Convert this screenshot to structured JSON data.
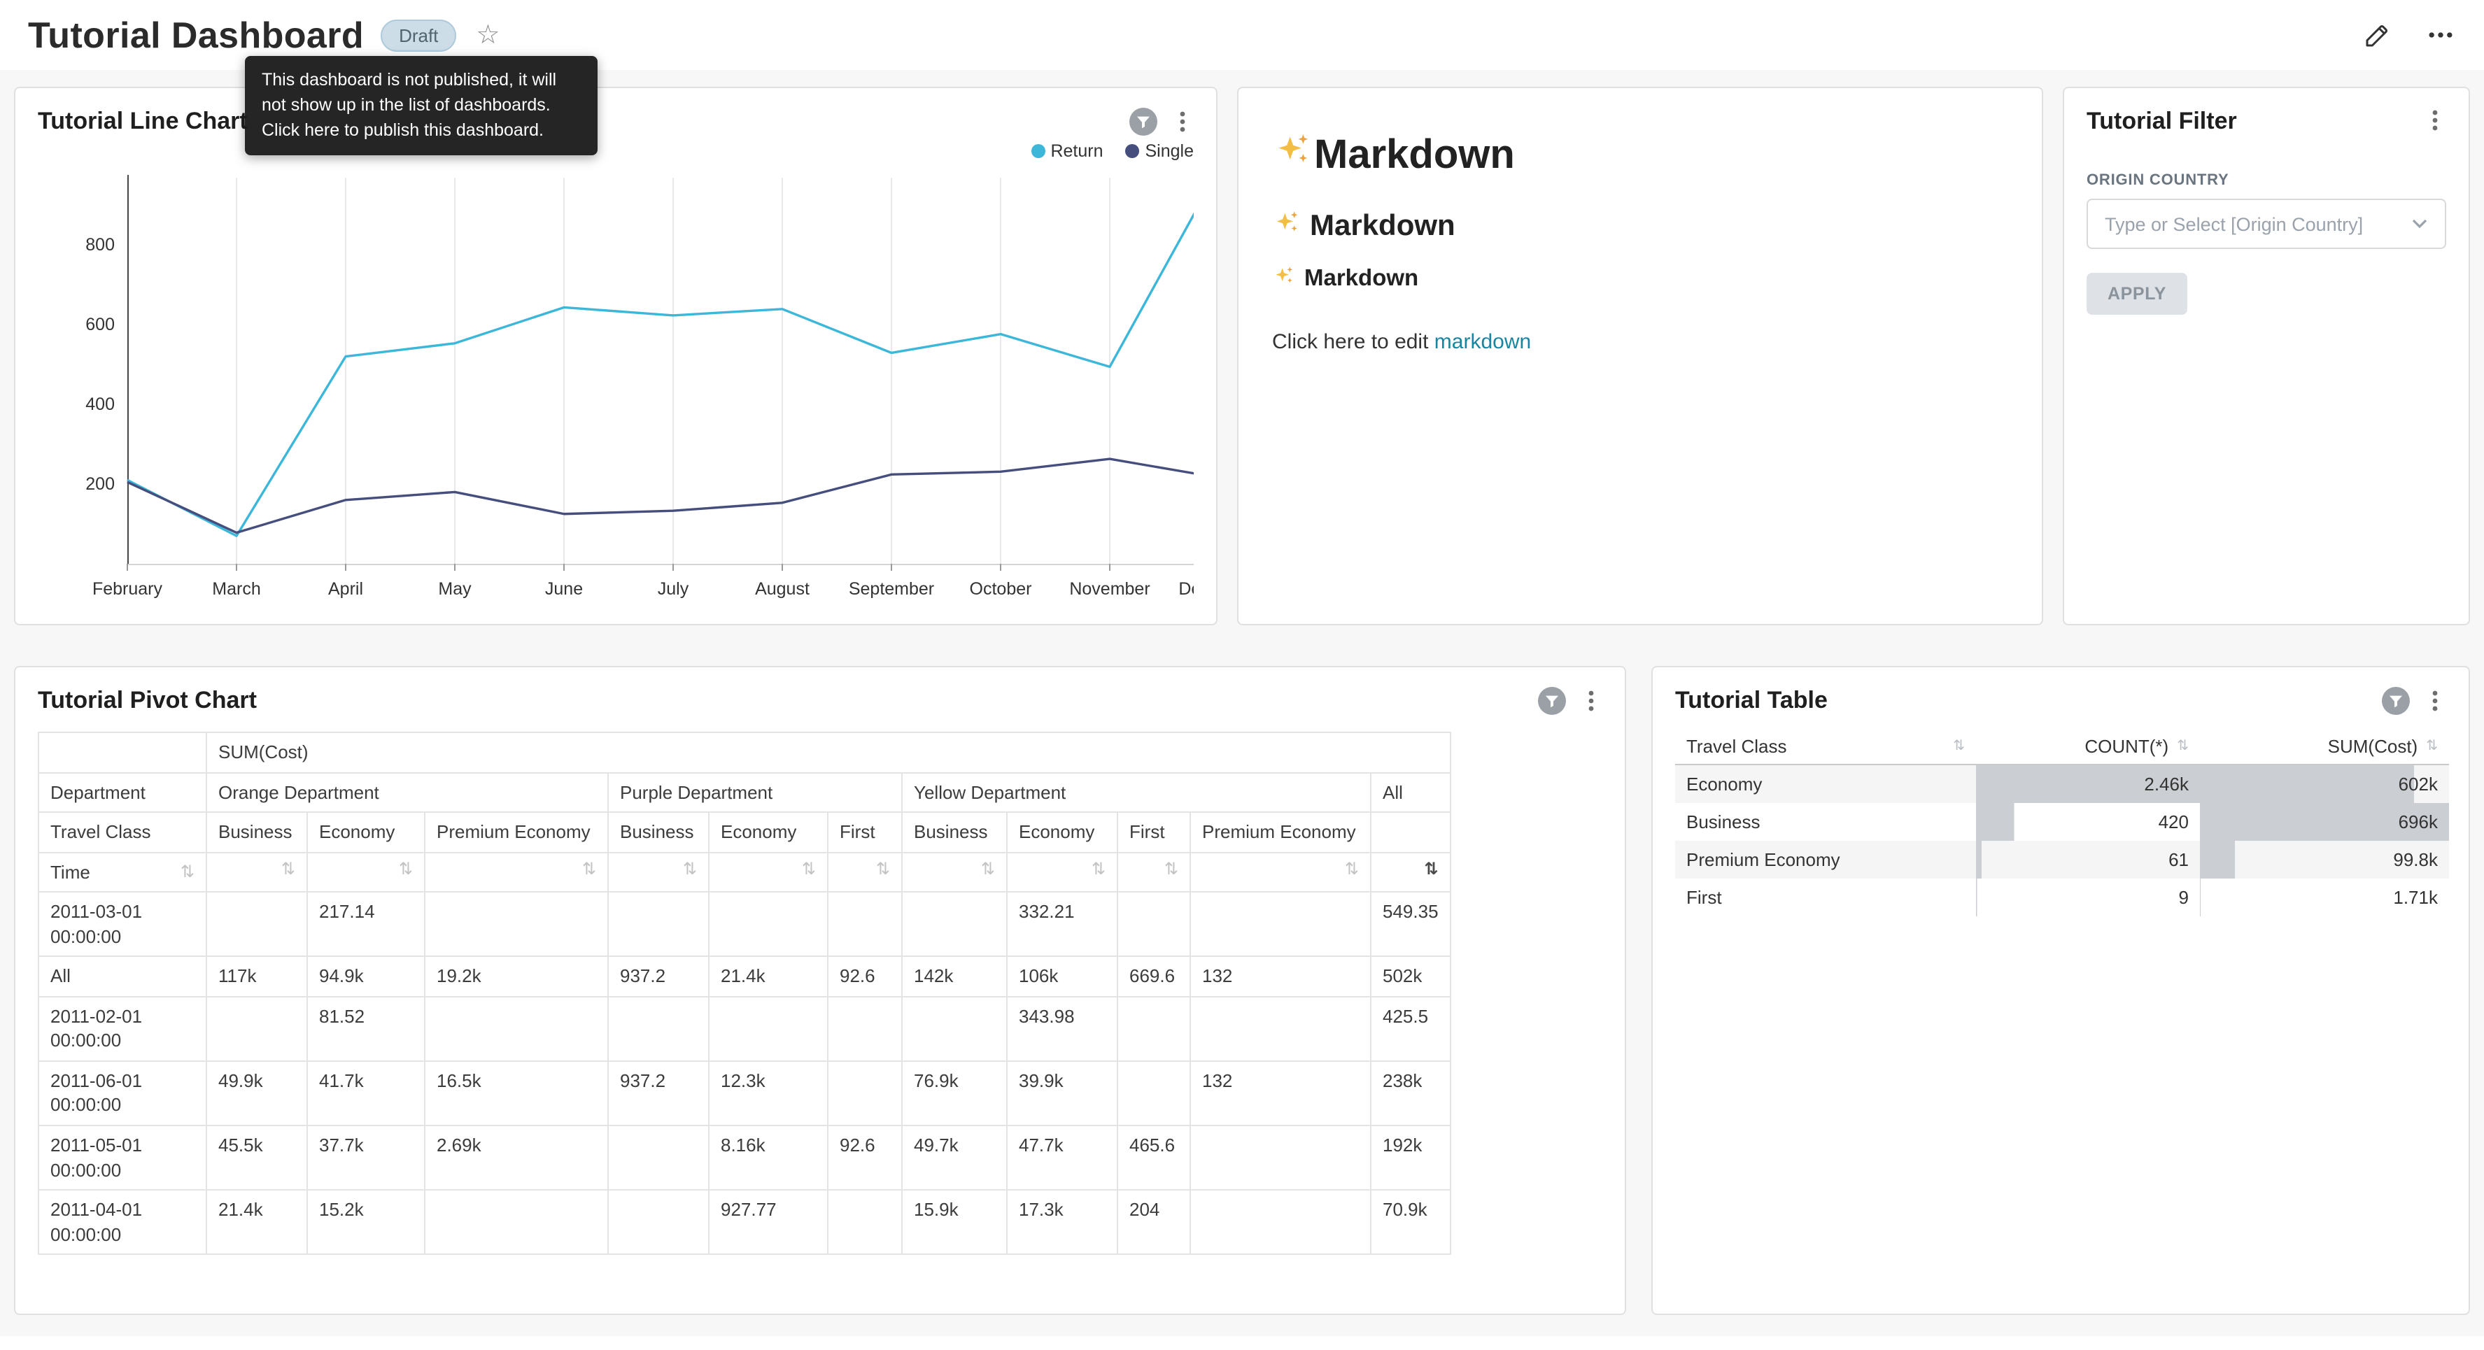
{
  "header": {
    "title": "Tutorial Dashboard",
    "badge": "Draft",
    "tooltip": "This dashboard is not published, it will not show up in the list of dashboards. Click here to publish this dashboard."
  },
  "icons": {
    "favorite_star": "☆",
    "sort": "⇅"
  },
  "markdown_card": {
    "heading1": "Markdown",
    "heading2": "Markdown",
    "heading3": "Markdown",
    "body_prefix": "Click here to edit ",
    "link_text": "markdown"
  },
  "filter_card": {
    "title": "Tutorial Filter",
    "field_label": "ORIGIN COUNTRY",
    "select_placeholder": "Type or Select [Origin Country]",
    "apply_label": "APPLY"
  },
  "chart_data": [
    {
      "id": "tutorial-line-chart",
      "type": "line",
      "title": "Tutorial Line Chart",
      "x": [
        "February",
        "March",
        "April",
        "May",
        "June",
        "July",
        "August",
        "September",
        "October",
        "November",
        "December"
      ],
      "series": [
        {
          "name": "Return",
          "color": "#3CB7D9",
          "values": [
            210,
            70,
            520,
            553,
            643,
            623,
            639,
            529,
            576,
            494,
            990
          ]
        },
        {
          "name": "Single",
          "color": "#454E7C",
          "values": [
            205,
            78,
            160,
            180,
            125,
            133,
            153,
            224,
            231,
            263,
            216
          ]
        }
      ],
      "yticks": [
        200,
        400,
        600,
        800
      ],
      "ylim": [
        0,
        1000
      ],
      "grid": "vertical",
      "legend_position": "top-right"
    },
    {
      "id": "tutorial-pivot-chart",
      "type": "table",
      "title": "Tutorial Pivot Chart",
      "measure": "SUM(Cost)",
      "corner_labels": [
        "Department",
        "Travel Class",
        "Time"
      ],
      "column_groups": [
        {
          "label": "Orange Department",
          "columns": [
            "Business",
            "Economy",
            "Premium Economy"
          ]
        },
        {
          "label": "Purple Department",
          "columns": [
            "Business",
            "Economy",
            "First"
          ]
        },
        {
          "label": "Yellow Department",
          "columns": [
            "Business",
            "Economy",
            "First",
            "Premium Economy"
          ]
        },
        {
          "label": "All",
          "columns": [
            ""
          ]
        }
      ],
      "sorted_column_index": 10,
      "rows": [
        {
          "time": "2011-03-01 00:00:00",
          "values": [
            "",
            "217.14",
            "",
            "",
            "",
            "",
            "",
            "332.21",
            "",
            "",
            "549.35"
          ]
        },
        {
          "time": "All",
          "values": [
            "117k",
            "94.9k",
            "19.2k",
            "937.2",
            "21.4k",
            "92.6",
            "142k",
            "106k",
            "669.6",
            "132",
            "502k"
          ]
        },
        {
          "time": "2011-02-01 00:00:00",
          "values": [
            "",
            "81.52",
            "",
            "",
            "",
            "",
            "",
            "343.98",
            "",
            "",
            "425.5"
          ]
        },
        {
          "time": "2011-06-01 00:00:00",
          "values": [
            "49.9k",
            "41.7k",
            "16.5k",
            "937.2",
            "12.3k",
            "",
            "76.9k",
            "39.9k",
            "",
            "132",
            "238k"
          ]
        },
        {
          "time": "2011-05-01 00:00:00",
          "values": [
            "45.5k",
            "37.7k",
            "2.69k",
            "",
            "8.16k",
            "92.6",
            "49.7k",
            "47.7k",
            "465.6",
            "",
            "192k"
          ]
        },
        {
          "time": "2011-04-01 00:00:00",
          "values": [
            "21.4k",
            "15.2k",
            "",
            "",
            "927.77",
            "",
            "15.9k",
            "17.3k",
            "204",
            "",
            "70.9k"
          ]
        }
      ]
    },
    {
      "id": "tutorial-table",
      "type": "table",
      "title": "Tutorial Table",
      "columns": [
        "Travel Class",
        "COUNT(*)",
        "SUM(Cost)"
      ],
      "bar_color": "#cbced2",
      "rows": [
        {
          "travel_class": "Economy",
          "count": "2.46k",
          "count_bar_pct": 100,
          "sum": "602k",
          "sum_bar_pct": 86
        },
        {
          "travel_class": "Business",
          "count": "420",
          "count_bar_pct": 17,
          "sum": "696k",
          "sum_bar_pct": 100
        },
        {
          "travel_class": "Premium Economy",
          "count": "61",
          "count_bar_pct": 2.5,
          "sum": "99.8k",
          "sum_bar_pct": 14
        },
        {
          "travel_class": "First",
          "count": "9",
          "count_bar_pct": 0.4,
          "sum": "1.71k",
          "sum_bar_pct": 0.3
        }
      ]
    }
  ]
}
